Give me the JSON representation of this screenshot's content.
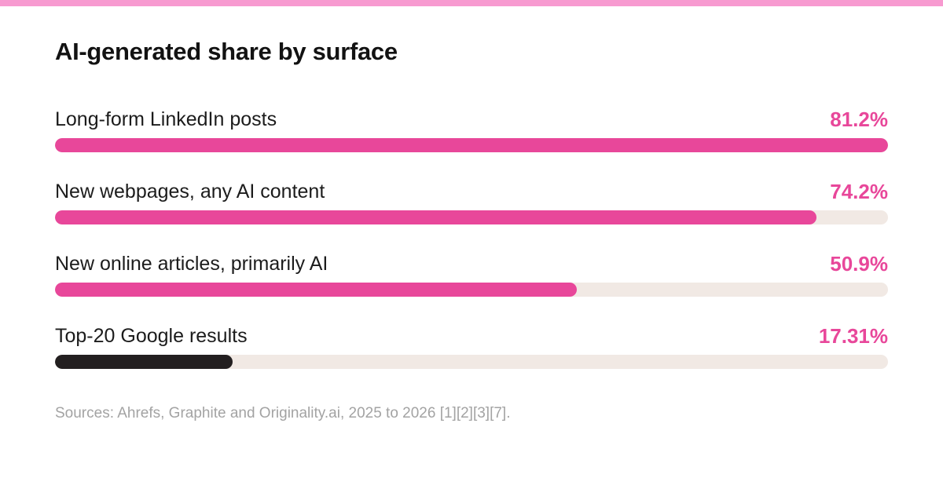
{
  "colors": {
    "top_strip": "#f79ad0",
    "accent": "#e8479a",
    "dark_bar": "#231f20",
    "track": "#f1e9e4",
    "value_text": "#e8479a"
  },
  "chart_data": {
    "type": "bar",
    "orientation": "horizontal",
    "title": "AI-generated share by surface",
    "categories": [
      "Long-form LinkedIn posts",
      "New webpages, any AI content",
      "New online articles, primarily AI",
      "Top-20 Google results"
    ],
    "values": [
      81.2,
      74.2,
      50.9,
      17.31
    ],
    "value_labels": [
      "81.2%",
      "74.2%",
      "50.9%",
      "17.31%"
    ],
    "unit": "%",
    "xlim": [
      0,
      81.2
    ],
    "highlight_colors": [
      "#e8479a",
      "#e8479a",
      "#e8479a",
      "#231f20"
    ],
    "grid": false,
    "legend": "none",
    "source": "Sources: Ahrefs, Graphite and Originality.ai, 2025 to 2026 [1][2][3][7]."
  }
}
